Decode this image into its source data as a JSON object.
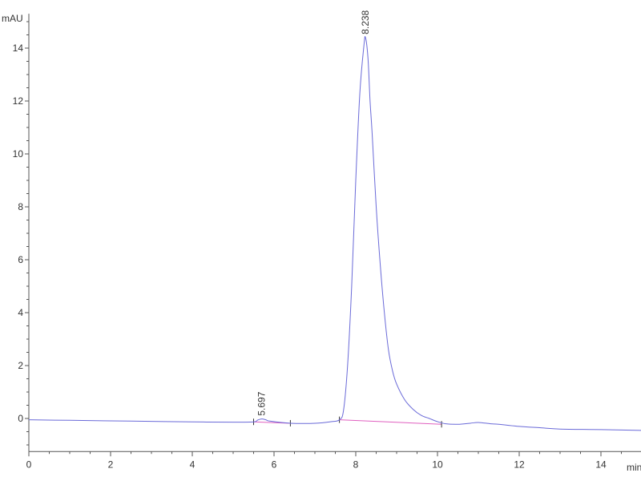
{
  "chart_data": {
    "type": "line",
    "title": "",
    "xlabel": "min",
    "ylabel": "mAU",
    "xlim": [
      0,
      15
    ],
    "ylim": [
      -1.25,
      15.3
    ],
    "x_ticks": [
      0,
      2,
      4,
      6,
      8,
      10,
      12,
      14
    ],
    "y_ticks": [
      0,
      2,
      4,
      6,
      8,
      10,
      12,
      14
    ],
    "grid": false,
    "colors": {
      "trace": "#6a6ad8",
      "baseline": "#e060c0",
      "axis": "#555555"
    },
    "series": [
      {
        "points": [
          [
            0,
            -0.05
          ],
          [
            1,
            -0.07
          ],
          [
            2,
            -0.09
          ],
          [
            3,
            -0.11
          ],
          [
            4,
            -0.13
          ],
          [
            5,
            -0.14
          ],
          [
            5.5,
            -0.13
          ],
          [
            5.6,
            -0.06
          ],
          [
            5.7,
            -0.02
          ],
          [
            5.8,
            -0.05
          ],
          [
            5.9,
            -0.1
          ],
          [
            6.4,
            -0.18
          ],
          [
            7,
            -0.18
          ],
          [
            7.4,
            -0.12
          ],
          [
            7.6,
            -0.05
          ],
          [
            7.7,
            0.3
          ],
          [
            7.8,
            2.0
          ],
          [
            7.9,
            5.0
          ],
          [
            8.0,
            9.0
          ],
          [
            8.1,
            12.3
          ],
          [
            8.2,
            14.1
          ],
          [
            8.238,
            14.4
          ],
          [
            8.3,
            13.6
          ],
          [
            8.35,
            12.0
          ],
          [
            8.4,
            10.8
          ],
          [
            8.5,
            8.0
          ],
          [
            8.6,
            5.8
          ],
          [
            8.7,
            4.0
          ],
          [
            8.8,
            2.6
          ],
          [
            8.9,
            1.8
          ],
          [
            9.0,
            1.3
          ],
          [
            9.2,
            0.7
          ],
          [
            9.4,
            0.35
          ],
          [
            9.6,
            0.12
          ],
          [
            9.8,
            0.0
          ],
          [
            10,
            -0.12
          ],
          [
            10.2,
            -0.2
          ],
          [
            10.5,
            -0.22
          ],
          [
            10.8,
            -0.18
          ],
          [
            11,
            -0.15
          ],
          [
            11.3,
            -0.2
          ],
          [
            11.5,
            -0.22
          ],
          [
            12,
            -0.3
          ],
          [
            12.5,
            -0.35
          ],
          [
            13,
            -0.4
          ],
          [
            14,
            -0.42
          ],
          [
            15,
            -0.45
          ]
        ]
      }
    ],
    "baselines": [
      [
        [
          5.5,
          -0.13
        ],
        [
          6.4,
          -0.18
        ]
      ],
      [
        [
          7.6,
          -0.05
        ],
        [
          10.1,
          -0.22
        ]
      ]
    ],
    "peaks": [
      {
        "label": "5.697",
        "x": 5.697,
        "y": -0.02
      },
      {
        "label": "8.238",
        "x": 8.238,
        "y": 14.4
      }
    ]
  }
}
